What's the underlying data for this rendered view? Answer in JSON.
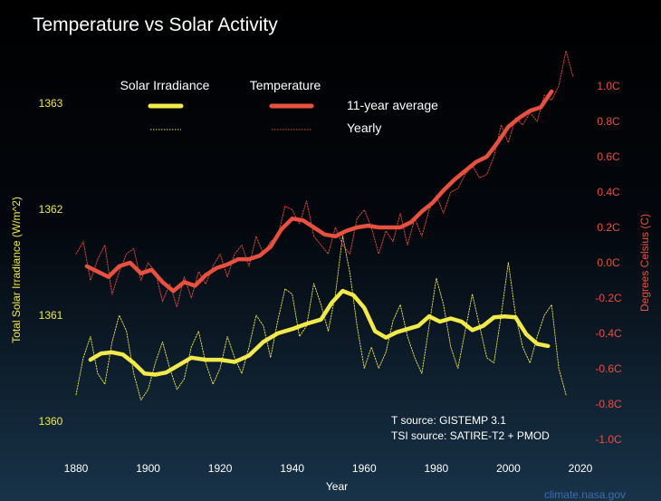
{
  "chart_data": {
    "type": "line",
    "title": "Temperature vs Solar Activity",
    "xlabel": "Year",
    "ylabel_left": "Total Solar Irradiance (W/m^2)",
    "ylabel_right": "Degrees Celsius (C)",
    "xlim": [
      1870,
      2020
    ],
    "x_ticks": [
      1880,
      1900,
      1920,
      1940,
      1960,
      1980,
      2000,
      2020
    ],
    "y_left_lim": [
      1359.85,
      1363.3
    ],
    "y_left_ticks": [
      1360,
      1361,
      1362,
      1363
    ],
    "y_right_lim": [
      -1.05,
      1.2
    ],
    "y_right_ticks": [
      -1.0,
      -0.8,
      -0.6,
      -0.4,
      -0.2,
      0.0,
      0.2,
      0.4,
      0.6,
      0.8,
      1.0
    ],
    "y_right_tick_labels": [
      "-1.0C",
      "-0.8C",
      "-0.6C",
      "-0.4C",
      "-0.2C",
      "0.0C",
      "0.2C",
      "0.4C",
      "0.6C",
      "0.8C",
      "1.0C"
    ],
    "background": "gradient black to dark blue",
    "grid": false,
    "legend": {
      "header_solar": "Solar Irradiance",
      "header_temp": "Temperature",
      "row_avg": "11-year average",
      "row_yearly": "Yearly",
      "placement": "top-center"
    },
    "series": [
      {
        "name": "Solar Irradiance 11-year average",
        "axis": "left",
        "color": "#f2e94a",
        "style": "thick",
        "x": [
          1884,
          1887,
          1890,
          1893,
          1896,
          1899,
          1902,
          1905,
          1908,
          1912,
          1916,
          1920,
          1924,
          1928,
          1932,
          1936,
          1940,
          1944,
          1948,
          1951,
          1954,
          1957,
          1960,
          1963,
          1966,
          1969,
          1972,
          1975,
          1978,
          1981,
          1984,
          1987,
          1990,
          1993,
          1996,
          1999,
          2002,
          2005,
          2008,
          2011
        ],
        "values": [
          1360.58,
          1360.64,
          1360.65,
          1360.63,
          1360.55,
          1360.45,
          1360.44,
          1360.46,
          1360.52,
          1360.6,
          1360.58,
          1360.58,
          1360.56,
          1360.62,
          1360.75,
          1360.83,
          1360.87,
          1360.92,
          1360.96,
          1361.12,
          1361.23,
          1361.19,
          1361.07,
          1360.85,
          1360.79,
          1360.84,
          1360.87,
          1360.9,
          1360.99,
          1360.94,
          1360.97,
          1360.94,
          1360.86,
          1360.9,
          1360.98,
          1360.99,
          1360.98,
          1360.82,
          1360.73,
          1360.71
        ]
      },
      {
        "name": "Solar Irradiance Yearly",
        "axis": "left",
        "color": "#f2e94a",
        "style": "dotted",
        "x": [
          1880,
          1882,
          1884,
          1886,
          1888,
          1890,
          1892,
          1894,
          1896,
          1898,
          1900,
          1902,
          1904,
          1906,
          1908,
          1910,
          1912,
          1914,
          1916,
          1918,
          1920,
          1922,
          1924,
          1926,
          1928,
          1930,
          1932,
          1934,
          1936,
          1938,
          1940,
          1942,
          1944,
          1946,
          1948,
          1950,
          1952,
          1954,
          1956,
          1958,
          1960,
          1962,
          1964,
          1966,
          1968,
          1970,
          1972,
          1974,
          1976,
          1978,
          1980,
          1982,
          1984,
          1986,
          1988,
          1990,
          1992,
          1994,
          1996,
          1998,
          2000,
          2002,
          2004,
          2006,
          2008,
          2010,
          2012,
          2014,
          2016
        ],
        "values": [
          1360.25,
          1360.6,
          1360.8,
          1360.45,
          1360.35,
          1360.75,
          1361.0,
          1360.85,
          1360.45,
          1360.2,
          1360.3,
          1360.55,
          1360.75,
          1360.5,
          1360.3,
          1360.4,
          1360.7,
          1360.85,
          1360.55,
          1360.35,
          1360.5,
          1360.8,
          1360.6,
          1360.45,
          1360.7,
          1361.0,
          1360.9,
          1360.6,
          1360.95,
          1361.25,
          1361.2,
          1360.8,
          1360.9,
          1361.3,
          1361.1,
          1360.85,
          1361.2,
          1361.75,
          1361.4,
          1360.9,
          1360.5,
          1360.7,
          1360.5,
          1360.65,
          1360.95,
          1361.1,
          1360.8,
          1360.6,
          1360.45,
          1360.9,
          1361.35,
          1361.1,
          1360.7,
          1360.5,
          1360.85,
          1361.2,
          1360.9,
          1360.6,
          1360.55,
          1361.0,
          1361.5,
          1361.0,
          1360.7,
          1360.55,
          1360.8,
          1361.0,
          1361.1,
          1360.5,
          1360.25
        ]
      },
      {
        "name": "Temperature 11-year average",
        "axis": "right",
        "color": "#e8503f",
        "style": "thick",
        "x": [
          1883,
          1886,
          1889,
          1892,
          1895,
          1898,
          1901,
          1904,
          1907,
          1910,
          1913,
          1916,
          1919,
          1922,
          1925,
          1928,
          1931,
          1934,
          1937,
          1940,
          1943,
          1946,
          1949,
          1952,
          1955,
          1958,
          1961,
          1964,
          1967,
          1970,
          1973,
          1976,
          1979,
          1982,
          1985,
          1988,
          1991,
          1994,
          1997,
          2000,
          2003,
          2006,
          2009,
          2012
        ],
        "values": [
          -0.02,
          -0.05,
          -0.08,
          -0.02,
          0.0,
          -0.06,
          -0.04,
          -0.11,
          -0.16,
          -0.11,
          -0.13,
          -0.07,
          -0.03,
          -0.01,
          0.02,
          0.02,
          0.04,
          0.09,
          0.19,
          0.25,
          0.24,
          0.2,
          0.16,
          0.15,
          0.18,
          0.2,
          0.21,
          0.2,
          0.2,
          0.2,
          0.23,
          0.29,
          0.34,
          0.41,
          0.47,
          0.52,
          0.57,
          0.6,
          0.68,
          0.77,
          0.82,
          0.86,
          0.88,
          0.97
        ]
      },
      {
        "name": "Temperature Yearly",
        "axis": "right",
        "color": "#e8503f",
        "style": "dotted",
        "x": [
          1880,
          1882,
          1884,
          1886,
          1888,
          1890,
          1892,
          1894,
          1896,
          1898,
          1900,
          1902,
          1904,
          1906,
          1908,
          1910,
          1912,
          1914,
          1916,
          1918,
          1920,
          1922,
          1924,
          1926,
          1928,
          1930,
          1932,
          1934,
          1936,
          1938,
          1940,
          1942,
          1944,
          1946,
          1948,
          1950,
          1952,
          1954,
          1956,
          1958,
          1960,
          1962,
          1964,
          1966,
          1968,
          1970,
          1972,
          1974,
          1976,
          1978,
          1980,
          1982,
          1984,
          1986,
          1988,
          1990,
          1992,
          1994,
          1996,
          1998,
          2000,
          2002,
          2004,
          2006,
          2008,
          2010,
          2012,
          2014,
          2016,
          2018
        ],
        "values": [
          0.05,
          0.12,
          -0.1,
          0.02,
          0.1,
          -0.18,
          -0.05,
          0.05,
          0.08,
          -0.1,
          0.0,
          -0.05,
          -0.22,
          -0.12,
          -0.25,
          -0.08,
          -0.2,
          -0.05,
          -0.12,
          -0.02,
          0.05,
          -0.08,
          0.05,
          0.1,
          -0.02,
          0.15,
          0.05,
          0.12,
          0.15,
          0.32,
          0.3,
          0.22,
          0.35,
          0.15,
          0.1,
          0.05,
          0.2,
          0.1,
          0.05,
          0.25,
          0.3,
          0.2,
          0.05,
          0.18,
          0.12,
          0.28,
          0.1,
          0.25,
          0.15,
          0.3,
          0.38,
          0.28,
          0.4,
          0.42,
          0.5,
          0.55,
          0.48,
          0.5,
          0.6,
          0.78,
          0.68,
          0.82,
          0.78,
          0.85,
          0.8,
          0.95,
          0.92,
          1.0,
          1.2,
          1.05
        ]
      }
    ],
    "annotations": [
      "T source: GISTEMP 3.1",
      "TSI source: SATIRE-T2 + PMOD"
    ],
    "credit": "climate.nasa.gov"
  }
}
